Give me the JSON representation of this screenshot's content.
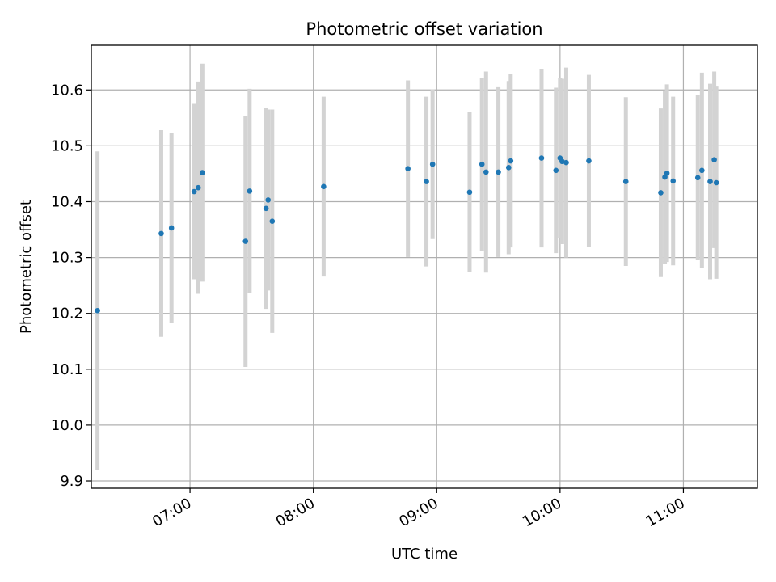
{
  "chart_data": {
    "type": "scatter",
    "title": "Photometric offset variation",
    "xlabel": "UTC time",
    "ylabel": "Photometric offset",
    "grid": true,
    "xlim": [
      "06:12",
      "11:36"
    ],
    "ylim": [
      9.887,
      10.68
    ],
    "x_ticks": [
      "07:00",
      "08:00",
      "09:00",
      "10:00",
      "11:00"
    ],
    "y_ticks": [
      "9.9",
      "10.0",
      "10.1",
      "10.2",
      "10.3",
      "10.4",
      "10.5",
      "10.6"
    ],
    "marker_color": "#1f77b4",
    "errorbar_color": "#d3d3d3",
    "points": [
      {
        "x": "06:15",
        "y": 10.205,
        "yerr": 0.285
      },
      {
        "x": "06:46",
        "y": 10.343,
        "yerr": 0.185
      },
      {
        "x": "06:51",
        "y": 10.353,
        "yerr": 0.17
      },
      {
        "x": "07:02",
        "y": 10.418,
        "yerr": 0.157
      },
      {
        "x": "07:04",
        "y": 10.425,
        "yerr": 0.19
      },
      {
        "x": "07:06",
        "y": 10.452,
        "yerr": 0.195
      },
      {
        "x": "07:27",
        "y": 10.329,
        "yerr": 0.225
      },
      {
        "x": "07:29",
        "y": 10.419,
        "yerr": 0.183
      },
      {
        "x": "07:37",
        "y": 10.388,
        "yerr": 0.18
      },
      {
        "x": "07:38",
        "y": 10.403,
        "yerr": 0.162
      },
      {
        "x": "07:40",
        "y": 10.365,
        "yerr": 0.2
      },
      {
        "x": "08:05",
        "y": 10.427,
        "yerr": 0.161
      },
      {
        "x": "08:46",
        "y": 10.459,
        "yerr": 0.158
      },
      {
        "x": "08:55",
        "y": 10.436,
        "yerr": 0.152
      },
      {
        "x": "08:58",
        "y": 10.467,
        "yerr": 0.134
      },
      {
        "x": "09:16",
        "y": 10.417,
        "yerr": 0.143
      },
      {
        "x": "09:22",
        "y": 10.467,
        "yerr": 0.155
      },
      {
        "x": "09:24",
        "y": 10.453,
        "yerr": 0.18
      },
      {
        "x": "09:30",
        "y": 10.453,
        "yerr": 0.152
      },
      {
        "x": "09:35",
        "y": 10.461,
        "yerr": 0.155
      },
      {
        "x": "09:36",
        "y": 10.473,
        "yerr": 0.155
      },
      {
        "x": "09:51",
        "y": 10.478,
        "yerr": 0.16
      },
      {
        "x": "09:58",
        "y": 10.456,
        "yerr": 0.148
      },
      {
        "x": "10:00",
        "y": 10.478,
        "yerr": 0.143
      },
      {
        "x": "10:01",
        "y": 10.472,
        "yerr": 0.148
      },
      {
        "x": "10:03",
        "y": 10.47,
        "yerr": 0.17
      },
      {
        "x": "10:14",
        "y": 10.473,
        "yerr": 0.154
      },
      {
        "x": "10:32",
        "y": 10.436,
        "yerr": 0.151
      },
      {
        "x": "10:49",
        "y": 10.416,
        "yerr": 0.151
      },
      {
        "x": "10:51",
        "y": 10.444,
        "yerr": 0.155
      },
      {
        "x": "10:52",
        "y": 10.451,
        "yerr": 0.159
      },
      {
        "x": "10:55",
        "y": 10.437,
        "yerr": 0.151
      },
      {
        "x": "11:07",
        "y": 10.443,
        "yerr": 0.148
      },
      {
        "x": "11:09",
        "y": 10.456,
        "yerr": 0.175
      },
      {
        "x": "11:13",
        "y": 10.436,
        "yerr": 0.175
      },
      {
        "x": "11:15",
        "y": 10.475,
        "yerr": 0.158
      },
      {
        "x": "11:16",
        "y": 10.434,
        "yerr": 0.172
      }
    ]
  }
}
